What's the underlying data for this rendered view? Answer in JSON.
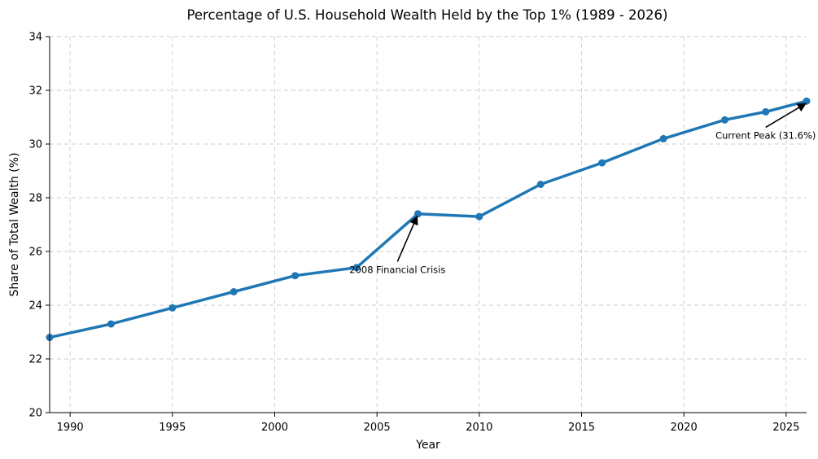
{
  "chart_data": {
    "type": "line",
    "title": "Percentage of U.S. Household Wealth Held by the Top 1% (1989 - 2026)",
    "xlabel": "Year",
    "ylabel": "Share of Total Wealth (%)",
    "xlim": [
      1989,
      2026
    ],
    "ylim": [
      20,
      34
    ],
    "xticks": [
      1990,
      1995,
      2000,
      2005,
      2010,
      2015,
      2020,
      2025
    ],
    "yticks": [
      20,
      22,
      24,
      26,
      28,
      30,
      32,
      34
    ],
    "grid": true,
    "series": [
      {
        "color": "#1f77b4",
        "x": [
          1989,
          1992,
          1995,
          1998,
          2001,
          2004,
          2007,
          2010,
          2013,
          2016,
          2019,
          2022,
          2024,
          2026
        ],
        "y": [
          22.8,
          23.3,
          23.9,
          24.5,
          25.1,
          25.4,
          27.4,
          27.3,
          28.5,
          29.3,
          30.2,
          30.9,
          31.2,
          31.6
        ]
      }
    ],
    "annotations": [
      {
        "text": "2008 Financial Crisis",
        "target": [
          2007,
          27.4
        ],
        "text_at": [
          2006,
          25.2
        ]
      },
      {
        "text": "Current Peak (31.6%)",
        "target": [
          2026,
          31.6
        ],
        "text_at": [
          2024,
          30.2
        ]
      }
    ]
  }
}
